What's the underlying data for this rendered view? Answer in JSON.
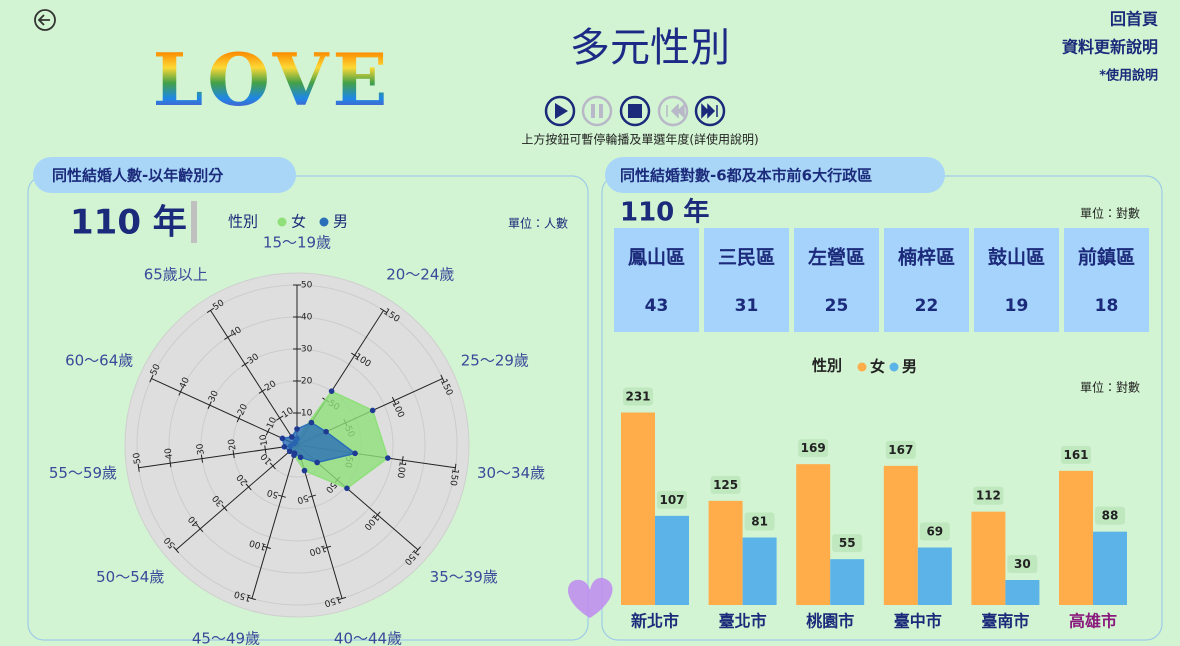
{
  "header": {
    "title": "多元性別",
    "logo": "LOVE",
    "hint": "上方按鈕可暫停輪播及單選年度(詳使用說明)",
    "links": [
      "回首頁",
      "資料更新說明",
      "*使用說明"
    ]
  },
  "left_panel": {
    "title": "同性結婚人數-以年齡別分"
  },
  "right_panel": {
    "title": "同性結婚對數-6都及本市前6大行政區",
    "year": "110 年",
    "unit": "單位：對數",
    "districts": {
      "names": [
        "鳳山區",
        "三民區",
        "左營區",
        "楠梓區",
        "鼓山區",
        "前鎮區"
      ],
      "values": [
        43,
        31,
        25,
        22,
        19,
        18
      ]
    }
  },
  "chart_data": [
    {
      "type": "radar",
      "year": "110 年",
      "legend_title": "性別",
      "unit": "單位：人數",
      "categories": [
        "15～19歲",
        "20～24歲",
        "25～29歲",
        "30～34歲",
        "35～39歲",
        "40～44歲",
        "45～49歲",
        "50～54歲",
        "55～59歲",
        "60～64歲",
        "65歲以上"
      ],
      "rlims": [
        [
          0,
          50
        ],
        [
          0,
          150
        ],
        [
          0,
          150
        ],
        [
          0,
          150
        ],
        [
          0,
          150
        ],
        [
          0,
          150
        ],
        [
          0,
          150
        ],
        [
          0,
          50
        ],
        [
          0,
          50
        ],
        [
          0,
          50
        ],
        [
          0,
          50
        ]
      ],
      "rticks": [
        [
          10,
          20,
          30,
          40,
          50
        ],
        [
          50,
          100,
          150
        ],
        [
          50,
          100,
          150
        ],
        [
          50,
          100,
          150
        ],
        [
          50,
          100,
          150
        ],
        [
          50,
          100,
          150
        ],
        [
          50,
          100,
          150
        ],
        [
          10,
          20,
          30,
          40,
          50
        ],
        [
          10,
          20,
          30,
          40,
          50
        ],
        [
          10,
          20,
          30,
          40,
          50
        ],
        [
          10,
          20,
          30,
          40,
          50
        ]
      ],
      "series": [
        {
          "name": "女",
          "color": "#8fe07a",
          "values": [
            2,
            60,
            78,
            86,
            62,
            25,
            10,
            3,
            2,
            1,
            1
          ]
        },
        {
          "name": "男",
          "color": "#2a6fb8",
          "values": [
            5,
            25,
            30,
            55,
            25,
            12,
            8,
            3,
            4,
            5,
            3
          ]
        }
      ]
    },
    {
      "type": "bar",
      "legend_title": "性別",
      "unit": "單位：對數",
      "categories": [
        "新北市",
        "臺北市",
        "桃園市",
        "臺中市",
        "臺南市",
        "高雄市"
      ],
      "ylim": [
        0,
        240
      ],
      "highlight_index": 5,
      "highlight_color": "#8b1a7e",
      "series": [
        {
          "name": "女",
          "color": "#ffad4a",
          "values": [
            231,
            125,
            169,
            167,
            112,
            161
          ]
        },
        {
          "name": "男",
          "color": "#5cb3e8",
          "values": [
            107,
            81,
            55,
            69,
            30,
            88
          ]
        }
      ]
    }
  ]
}
